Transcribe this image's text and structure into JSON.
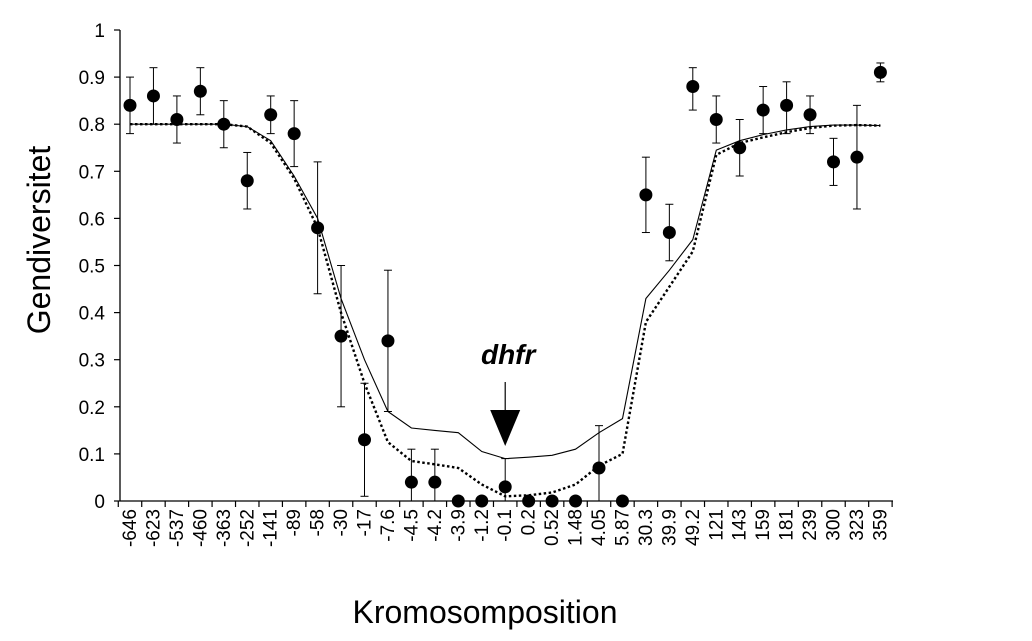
{
  "chart_data": {
    "type": "scatter",
    "title": "",
    "xlabel": "Kromosomposition",
    "ylabel": "Gendiversitet",
    "ylim": [
      0,
      1
    ],
    "yticks": [
      "0",
      "0.1",
      "0.2",
      "0.3",
      "0.4",
      "0.5",
      "0.6",
      "0.7",
      "0.8",
      "0.9",
      "1"
    ],
    "categories": [
      "-646",
      "-623",
      "-537",
      "-460",
      "-363",
      "-252",
      "-141",
      "-89",
      "-58",
      "-30",
      "-17",
      "-7.6",
      "-4.5",
      "-4.2",
      "-3.9",
      "-1.2",
      "-0.1",
      "0.2",
      "0.52",
      "1.48",
      "4.05",
      "5.87",
      "30.3",
      "39.9",
      "49.2",
      "121",
      "143",
      "159",
      "181",
      "239",
      "300",
      "323",
      "359"
    ],
    "grid": false,
    "legend": "none",
    "series": [
      {
        "kind": "points",
        "values": [
          0.84,
          0.86,
          0.81,
          0.87,
          0.8,
          0.68,
          0.82,
          0.78,
          0.58,
          0.35,
          0.13,
          0.34,
          0.04,
          0.04,
          0.0,
          0.0,
          0.03,
          0.0,
          0.0,
          0.0,
          0.07,
          0.0,
          0.65,
          0.57,
          0.88,
          0.81,
          0.75,
          0.83,
          0.84,
          0.82,
          0.72,
          0.73,
          0.91
        ],
        "error_low": [
          0.78,
          0.8,
          0.76,
          0.82,
          0.75,
          0.62,
          0.78,
          0.71,
          0.44,
          0.2,
          0.01,
          0.19,
          0.0,
          0.0,
          null,
          null,
          0.0,
          null,
          null,
          null,
          0.0,
          null,
          0.57,
          0.51,
          0.83,
          0.76,
          0.69,
          0.78,
          0.78,
          0.78,
          0.67,
          0.62,
          0.89
        ],
        "error_high": [
          0.9,
          0.92,
          0.86,
          0.92,
          0.85,
          0.74,
          0.86,
          0.85,
          0.72,
          0.5,
          0.25,
          0.49,
          0.11,
          0.11,
          null,
          null,
          0.09,
          null,
          null,
          null,
          0.16,
          null,
          0.73,
          0.63,
          0.92,
          0.86,
          0.81,
          0.88,
          0.89,
          0.86,
          0.77,
          0.84,
          0.93
        ]
      },
      {
        "kind": "line",
        "style": "solid",
        "values": [
          0.8,
          0.8,
          0.8,
          0.8,
          0.8,
          0.795,
          0.765,
          0.69,
          0.6,
          0.43,
          0.3,
          0.19,
          0.155,
          0.15,
          0.145,
          0.105,
          0.09,
          0.093,
          0.097,
          0.11,
          0.145,
          0.175,
          0.43,
          0.49,
          0.555,
          0.745,
          0.765,
          0.778,
          0.788,
          0.795,
          0.798,
          0.798,
          0.797
        ]
      },
      {
        "kind": "line",
        "style": "dotted",
        "values": [
          0.8,
          0.8,
          0.8,
          0.8,
          0.8,
          0.795,
          0.76,
          0.685,
          0.58,
          0.4,
          0.25,
          0.125,
          0.085,
          0.078,
          0.07,
          0.035,
          0.01,
          0.012,
          0.018,
          0.035,
          0.075,
          0.1,
          0.38,
          0.455,
          0.53,
          0.735,
          0.76,
          0.772,
          0.783,
          0.792,
          0.797,
          0.798,
          0.797
        ]
      }
    ],
    "annotations": [
      {
        "text": "dhfr",
        "category": "-0.1",
        "arrow": "down"
      }
    ]
  }
}
